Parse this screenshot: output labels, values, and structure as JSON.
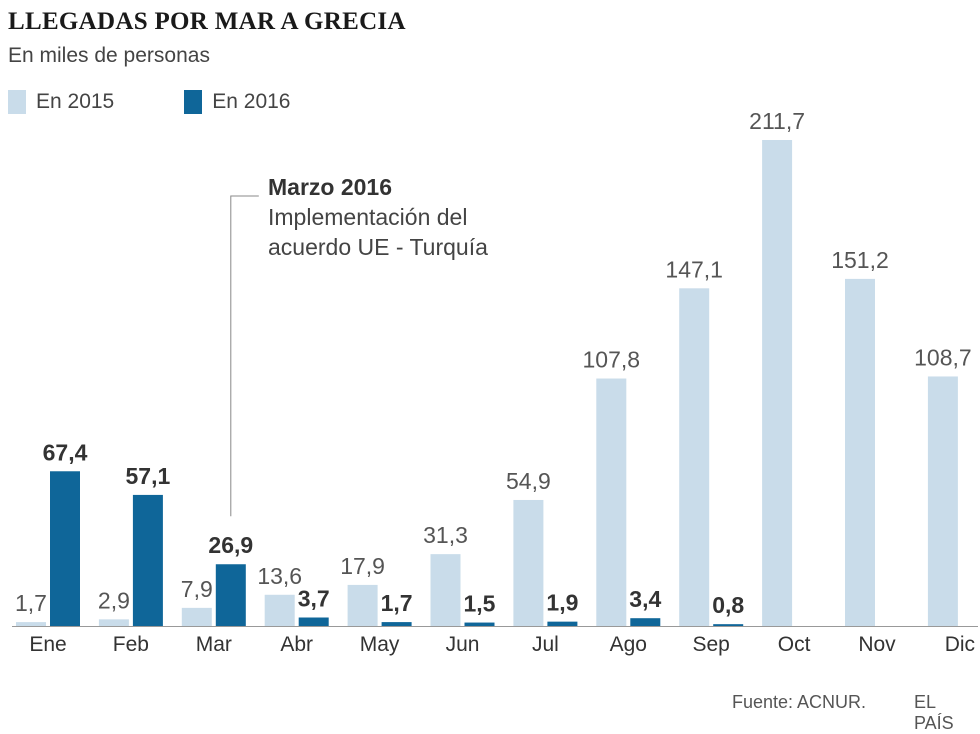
{
  "chart_data": {
    "type": "bar",
    "title": "LLEGADAS POR MAR A GRECIA",
    "subtitle": "En miles de personas",
    "categories": [
      "Ene",
      "Feb",
      "Mar",
      "Abr",
      "May",
      "Jun",
      "Jul",
      "Ago",
      "Sep",
      "Oct",
      "Nov",
      "Dic"
    ],
    "series": [
      {
        "name": "En 2015",
        "color": "#c9dcea",
        "values": [
          1.7,
          2.9,
          7.9,
          13.6,
          17.9,
          31.3,
          54.9,
          107.8,
          147.1,
          211.7,
          151.2,
          108.7
        ],
        "labels": [
          "1,7",
          "2,9",
          "7,9",
          "13,6",
          "17,9",
          "31,3",
          "54,9",
          "107,8",
          "147,1",
          "211,7",
          "151,2",
          "108,7"
        ]
      },
      {
        "name": "En 2016",
        "color": "#0f6699",
        "values": [
          67.4,
          57.1,
          26.9,
          3.7,
          1.7,
          1.5,
          1.9,
          3.4,
          0.8,
          null,
          null,
          null
        ],
        "labels": [
          "67,4",
          "57,1",
          "26,9",
          "3,7",
          "1,7",
          "1,5",
          "1,9",
          "3,4",
          "0,8",
          "",
          "",
          ""
        ]
      }
    ],
    "ylim": [
      0,
      215
    ],
    "grid": false,
    "legend_position": "top-left",
    "annotation": {
      "category": "Mar",
      "title": "Marzo 2016",
      "lines": [
        "Implementación del",
        "acuerdo UE - Turquía"
      ]
    }
  },
  "footer": {
    "source": "Fuente: ACNUR.",
    "brand": "EL PAÍS"
  }
}
